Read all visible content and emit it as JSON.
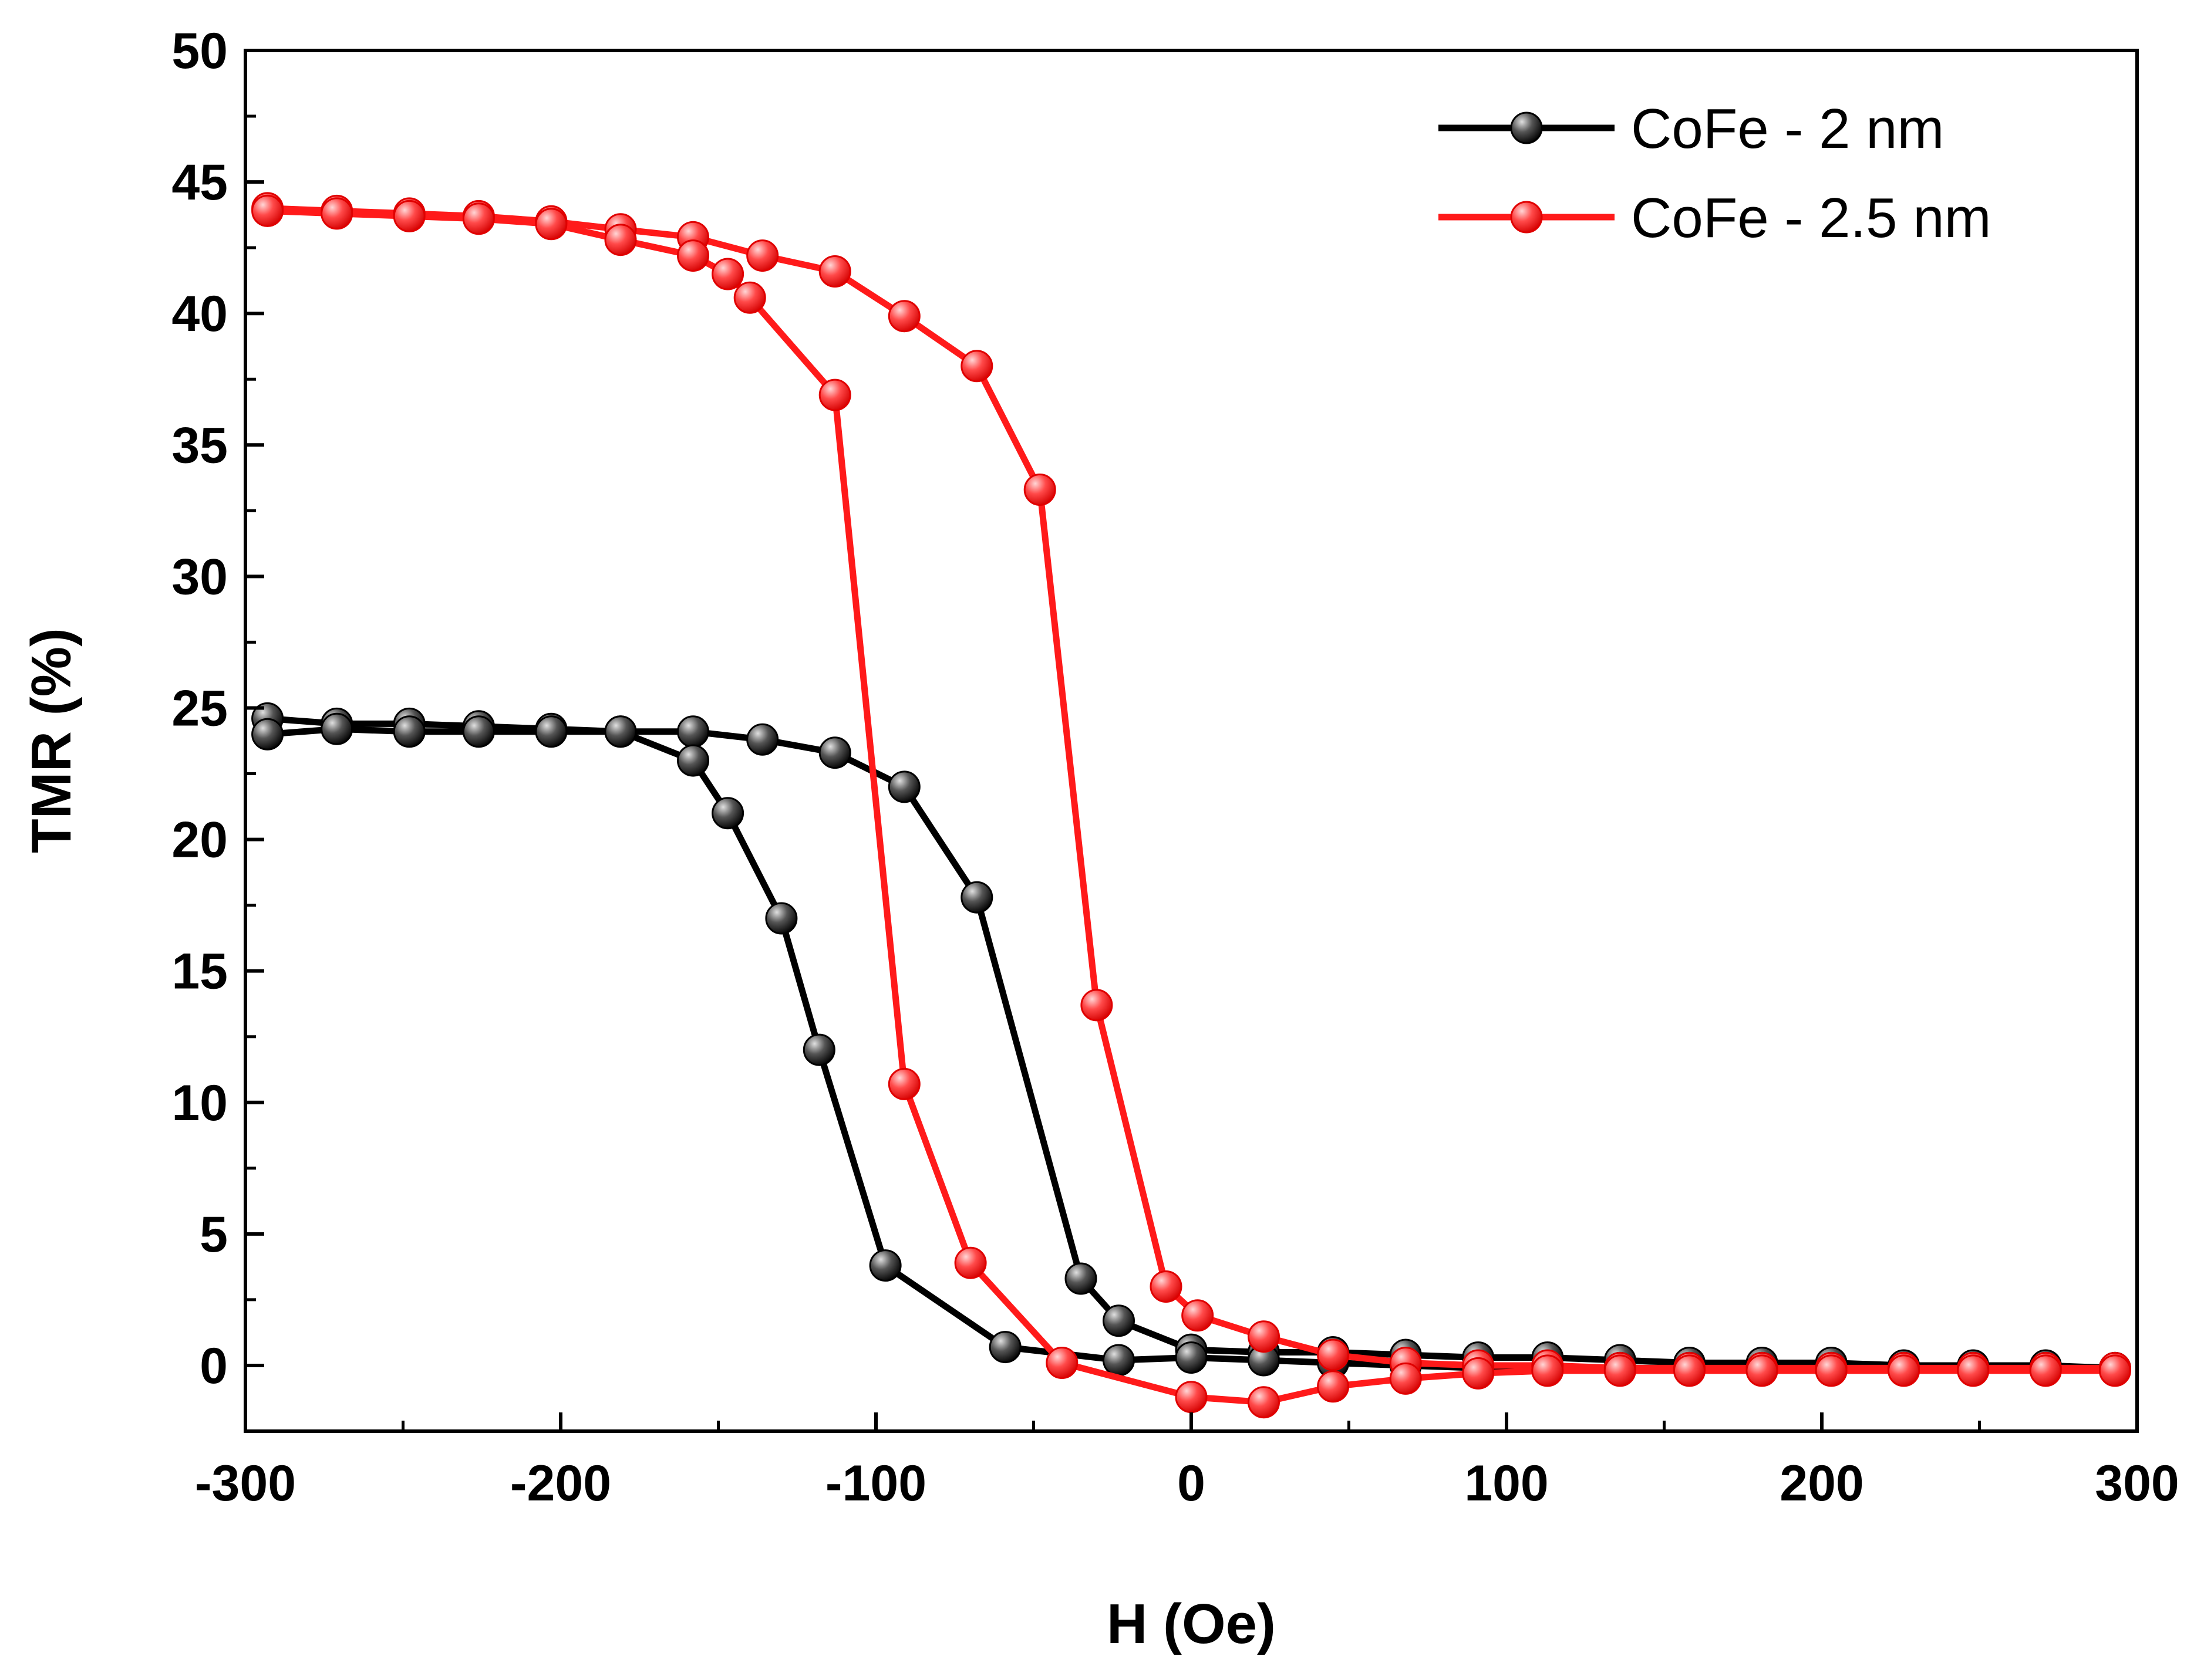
{
  "chart_data": {
    "type": "line",
    "title": "",
    "xlabel": "H (Oe)",
    "ylabel": "TMR (%)",
    "xlim": [
      -300,
      300
    ],
    "ylim": [
      -2.5,
      50
    ],
    "xticks": [
      -300,
      -200,
      -100,
      0,
      100,
      200,
      300
    ],
    "xtick_labels": [
      "-300",
      "-200",
      "-100",
      "0",
      "100",
      "200",
      "300"
    ],
    "yticks": [
      0,
      5,
      10,
      15,
      20,
      25,
      30,
      35,
      40,
      45,
      50
    ],
    "ytick_labels": [
      "0",
      "5",
      "10",
      "15",
      "20",
      "25",
      "30",
      "35",
      "40",
      "45",
      "50"
    ],
    "grid": false,
    "legend": {
      "position": "top-right"
    },
    "series": [
      {
        "name": "CoFe - 2 nm",
        "color": "#000000",
        "marker": "sphere",
        "branches": [
          {
            "x": [
              -293,
              -271,
              -248,
              -226,
              -203,
              -181,
              -158,
              -136,
              -113,
              -91,
              -68,
              -35,
              -23,
              0,
              23,
              45,
              68,
              91,
              113,
              136,
              158,
              181,
              203,
              226,
              248,
              271,
              293
            ],
            "y": [
              24.6,
              24.4,
              24.4,
              24.3,
              24.2,
              24.1,
              24.1,
              23.8,
              23.3,
              22.0,
              17.8,
              3.3,
              1.7,
              0.6,
              0.5,
              0.5,
              0.4,
              0.3,
              0.3,
              0.2,
              0.1,
              0.1,
              0.1,
              0.0,
              0.0,
              0.0,
              -0.1
            ]
          },
          {
            "x": [
              -293,
              -271,
              -248,
              -226,
              -203,
              -181,
              -158,
              -147,
              -130,
              -118,
              -97,
              -59,
              -23,
              0,
              23,
              45,
              68,
              91,
              113,
              136,
              158,
              181,
              203,
              226,
              248,
              271,
              293
            ],
            "y": [
              24.0,
              24.2,
              24.1,
              24.1,
              24.1,
              24.1,
              23.0,
              21.0,
              17.0,
              12.0,
              3.8,
              0.7,
              0.2,
              0.3,
              0.2,
              0.1,
              0.0,
              -0.1,
              -0.1,
              -0.1,
              -0.1,
              -0.1,
              -0.1,
              -0.1,
              -0.1,
              -0.1,
              -0.1
            ]
          }
        ]
      },
      {
        "name": "CoFe - 2.5 nm",
        "color": "#ff1a1a",
        "marker": "sphere",
        "branches": [
          {
            "x": [
              -293,
              -271,
              -248,
              -226,
              -203,
              -181,
              -158,
              -136,
              -113,
              -91,
              -68,
              -48,
              -30,
              -8,
              2,
              23,
              45,
              68,
              91,
              113,
              136,
              158,
              181,
              203,
              226,
              248,
              271,
              293
            ],
            "y": [
              44.0,
              43.9,
              43.8,
              43.7,
              43.5,
              43.2,
              42.9,
              42.2,
              41.6,
              39.9,
              38.0,
              33.3,
              13.7,
              3.0,
              1.9,
              1.1,
              0.4,
              0.1,
              0.0,
              0.0,
              -0.1,
              -0.1,
              -0.1,
              -0.1,
              -0.1,
              -0.1,
              -0.1,
              -0.1
            ]
          },
          {
            "x": [
              -293,
              -271,
              -248,
              -226,
              -203,
              -181,
              -158,
              -147,
              -140,
              -113,
              -91,
              -70,
              -41,
              0,
              23,
              45,
              68,
              91,
              113,
              136,
              158,
              181,
              203,
              226,
              248,
              271,
              293
            ],
            "y": [
              43.9,
              43.8,
              43.7,
              43.6,
              43.4,
              42.8,
              42.2,
              41.5,
              40.6,
              36.9,
              10.7,
              3.9,
              0.1,
              -1.2,
              -1.4,
              -0.8,
              -0.5,
              -0.3,
              -0.2,
              -0.2,
              -0.2,
              -0.2,
              -0.2,
              -0.2,
              -0.2,
              -0.2,
              -0.2
            ]
          }
        ]
      }
    ]
  }
}
